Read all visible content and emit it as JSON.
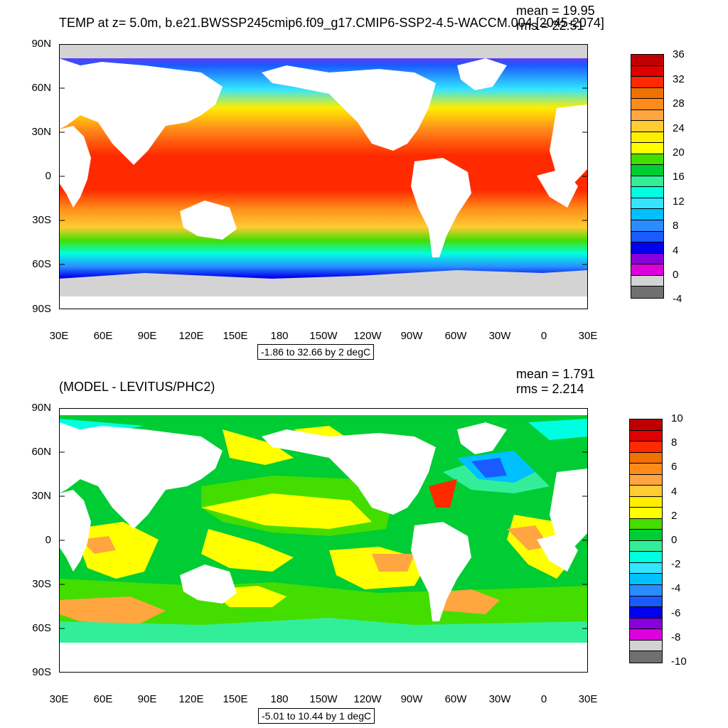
{
  "panels": [
    {
      "id": "top",
      "title": "TEMP at z=   5.0m, b.e21.BWSSP245cmip6.f09_g17.CMIP6-SSP2-4.5-WACCM.004 [2045-2074]",
      "mean_label": "mean = 19.95",
      "rms_label": "rms = 22.51",
      "range_label": "-1.86 to 32.66 by 2 degC",
      "y_ticks": [
        "90N",
        "60N",
        "30N",
        "0",
        "30S",
        "60S",
        "90S"
      ],
      "x_ticks": [
        "30E",
        "60E",
        "90E",
        "120E",
        "150E",
        "180",
        "150W",
        "120W",
        "90W",
        "60W",
        "30W",
        "0",
        "30E"
      ],
      "colorbar": {
        "labels": [
          "36",
          "32",
          "28",
          "24",
          "20",
          "16",
          "12",
          "8",
          "4",
          "0",
          "-4"
        ],
        "colors": [
          "#c00000",
          "#e00000",
          "#ff2a00",
          "#f07000",
          "#ff8c1a",
          "#ffa640",
          "#ffcc33",
          "#ffee00",
          "#ffff00",
          "#44dd00",
          "#00cc33",
          "#33ee99",
          "#00ffe0",
          "#33e5ff",
          "#00c0ff",
          "#2a8cff",
          "#1a5aff",
          "#0000ee",
          "#8800dd",
          "#dd00dd",
          "#d3d3d3",
          "#707070"
        ]
      }
    },
    {
      "id": "bottom",
      "title": "(MODEL - LEVITUS/PHC2)",
      "mean_label": "mean = 1.791",
      "rms_label": "rms = 2.214",
      "range_label": "-5.01 to 10.44 by 1 degC",
      "y_ticks": [
        "90N",
        "60N",
        "30N",
        "0",
        "30S",
        "60S",
        "90S"
      ],
      "x_ticks": [
        "30E",
        "60E",
        "90E",
        "120E",
        "150E",
        "180",
        "150W",
        "120W",
        "90W",
        "60W",
        "30W",
        "0",
        "30E"
      ],
      "colorbar": {
        "labels": [
          "10",
          "8",
          "6",
          "4",
          "2",
          "0",
          "-2",
          "-4",
          "-6",
          "-8",
          "-10"
        ],
        "colors": [
          "#c00000",
          "#e00000",
          "#ff2a00",
          "#f07000",
          "#ff8c1a",
          "#ffa640",
          "#ffcc33",
          "#ffee00",
          "#ffff00",
          "#44dd00",
          "#00cc33",
          "#33ee99",
          "#00ffe0",
          "#33e5ff",
          "#00c0ff",
          "#2a8cff",
          "#1a5aff",
          "#0000ee",
          "#8800dd",
          "#dd00dd",
          "#d3d3d3",
          "#707070"
        ]
      }
    }
  ]
}
